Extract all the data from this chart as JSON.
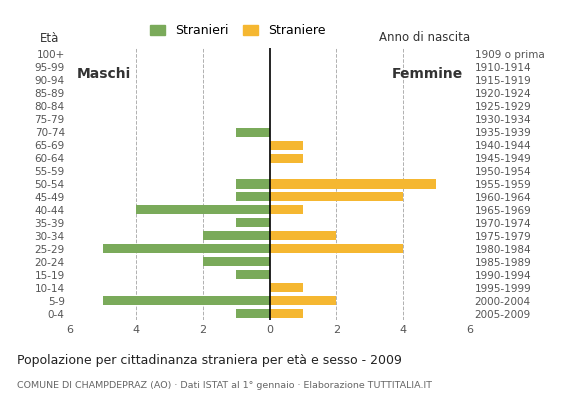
{
  "age_groups": [
    "100+",
    "95-99",
    "90-94",
    "85-89",
    "80-84",
    "75-79",
    "70-74",
    "65-69",
    "60-64",
    "55-59",
    "50-54",
    "45-49",
    "40-44",
    "35-39",
    "30-34",
    "25-29",
    "20-24",
    "15-19",
    "10-14",
    "5-9",
    "0-4"
  ],
  "birth_years": [
    "1909 o prima",
    "1910-1914",
    "1915-1919",
    "1920-1924",
    "1925-1929",
    "1930-1934",
    "1935-1939",
    "1940-1944",
    "1945-1949",
    "1950-1954",
    "1955-1959",
    "1960-1964",
    "1965-1969",
    "1970-1974",
    "1975-1979",
    "1980-1984",
    "1985-1989",
    "1990-1994",
    "1995-1999",
    "2000-2004",
    "2005-2009"
  ],
  "males": [
    0,
    0,
    0,
    0,
    0,
    0,
    1,
    0,
    0,
    0,
    1,
    1,
    4,
    1,
    2,
    5,
    2,
    1,
    0,
    5,
    1
  ],
  "females": [
    0,
    0,
    0,
    0,
    0,
    0,
    0,
    1,
    1,
    0,
    5,
    4,
    1,
    0,
    2,
    4,
    0,
    0,
    1,
    2,
    1
  ],
  "male_color": "#7aaa5a",
  "female_color": "#f5b731",
  "title": "Popolazione per cittadinanza straniera per età e sesso - 2009",
  "subtitle": "COMUNE DI CHAMPDEPRAZ (AO) · Dati ISTAT al 1° gennaio · Elaborazione TUTTITALIA.IT",
  "legend_male": "Stranieri",
  "legend_female": "Straniere",
  "eta_label": "Età",
  "anno_label": "Anno di nascita",
  "maschi_label": "Maschi",
  "femmine_label": "Femmine",
  "xlim": 6,
  "background_color": "#ffffff",
  "grid_color": "#b0b0b0"
}
